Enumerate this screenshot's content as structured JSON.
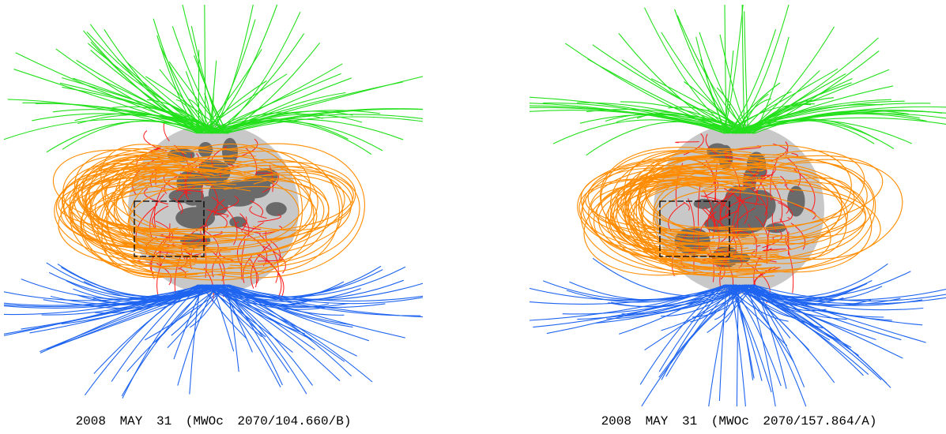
{
  "panels": [
    {
      "caption": "2008 MAY 31 (MWOc 2070/104.660/B)"
    },
    {
      "caption": "2008 MAY 31 (MWOc 2070/157.864/A)"
    }
  ]
}
